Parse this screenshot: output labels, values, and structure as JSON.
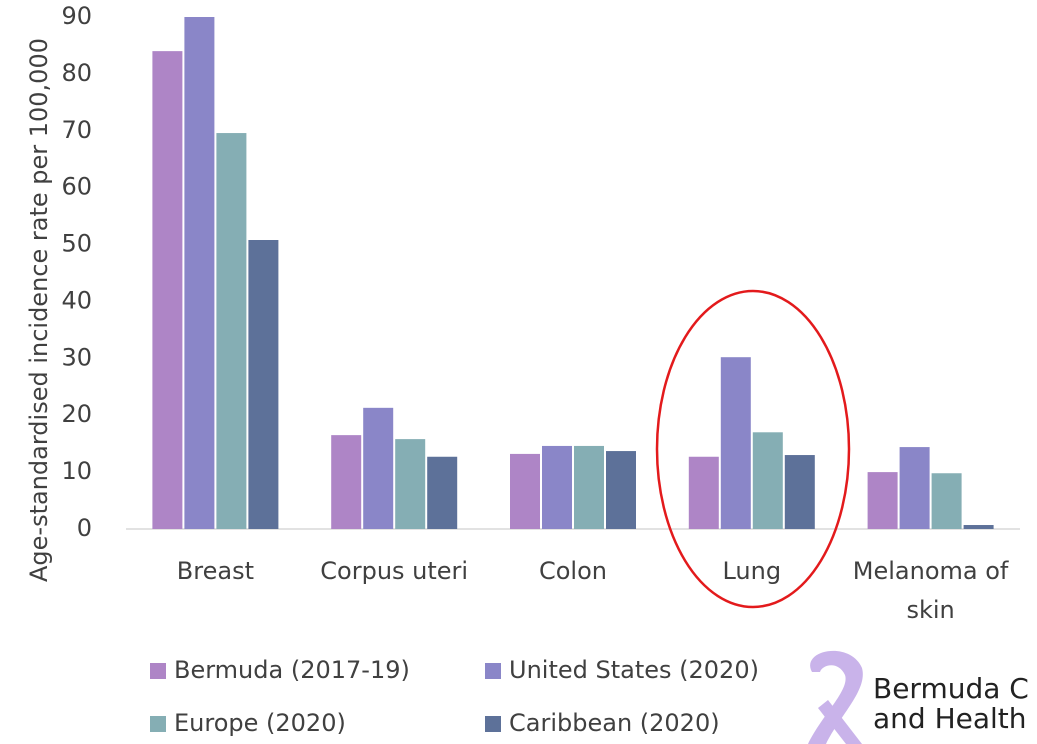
{
  "chart_data": {
    "type": "bar",
    "y_label": "Age-standardised incidence rate per 100,000",
    "categories": [
      "Breast",
      "Corpus uteri",
      "Colon",
      "Lung",
      "Melanoma of skin"
    ],
    "series": [
      {
        "name": "Bermuda (2017-19)",
        "color": "#ae85c6",
        "values": [
          84,
          16.5,
          13.2,
          12.7,
          10.0
        ]
      },
      {
        "name": "United States (2020)",
        "color": "#8a86c8",
        "values": [
          90,
          21.3,
          14.6,
          30.2,
          14.4
        ]
      },
      {
        "name": "Europe (2020)",
        "color": "#85aeb4",
        "values": [
          69.6,
          15.8,
          14.6,
          17.0,
          9.8
        ]
      },
      {
        "name": "Caribbean (2020)",
        "color": "#5d7199",
        "values": [
          50.8,
          12.7,
          13.7,
          13.0,
          0.7
        ]
      }
    ],
    "ylim": [
      0,
      90
    ],
    "yticks": [
      0,
      10,
      20,
      30,
      40,
      50,
      60,
      70,
      80,
      90
    ],
    "grid": false
  },
  "logo": {
    "line1": "Bermuda C",
    "line2": "and Health"
  }
}
